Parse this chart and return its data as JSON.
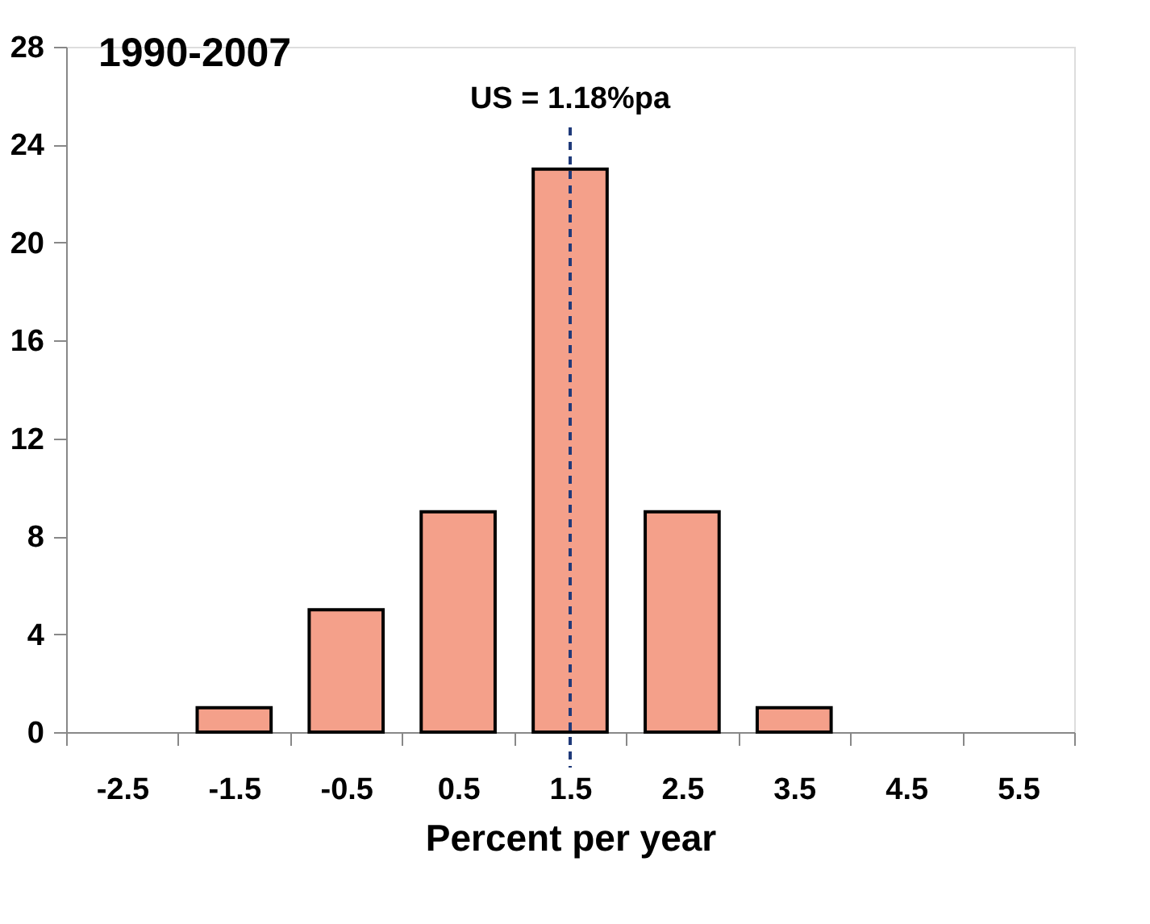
{
  "chart_data": {
    "type": "bar",
    "title": "1990-2007",
    "xlabel": "Percent per year",
    "categories": [
      "-2.5",
      "-1.5",
      "-0.5",
      "0.5",
      "1.5",
      "2.5",
      "3.5",
      "4.5",
      "5.5"
    ],
    "values": [
      0,
      1,
      5,
      9,
      23,
      9,
      1,
      0,
      0
    ],
    "color": "#f4a08a",
    "ylim": [
      0,
      28
    ],
    "yticks": [
      0,
      4,
      8,
      12,
      16,
      20,
      24,
      28
    ],
    "grid": false,
    "ref_lines": [
      {
        "axis": "x",
        "value": "1.5",
        "label": "US = 1.18%pa",
        "color": "#1f3a7a",
        "line_style": "dashed"
      }
    ]
  }
}
